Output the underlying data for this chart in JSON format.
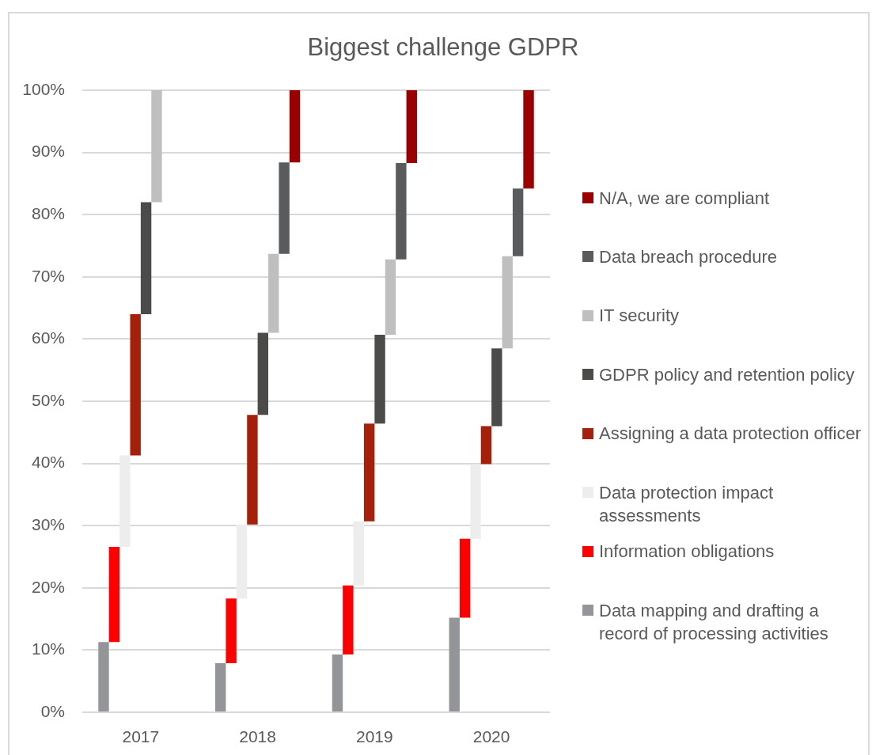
{
  "chart_data": {
    "type": "bar",
    "title": "Biggest challenge GDPR",
    "categories": [
      "2017",
      "2018",
      "2019",
      "2020"
    ],
    "stacked": true,
    "series": [
      {
        "name": "Data mapping and drafting a record of processing activities",
        "color": "#939598",
        "values": [
          11.3,
          7.9,
          9.3,
          15.2
        ]
      },
      {
        "name": "Information obligations",
        "color": "#ff0000",
        "values": [
          15.3,
          10.4,
          11.1,
          12.7
        ]
      },
      {
        "name": "Data protection impact assessments",
        "color": "#ededed",
        "values": [
          14.7,
          11.9,
          10.3,
          12.0
        ]
      },
      {
        "name": "Assigning a data protection officer",
        "color": "#a5200a",
        "values": [
          22.7,
          17.6,
          15.7,
          6.1
        ]
      },
      {
        "name": "GDPR policy and retention policy",
        "color": "#4b4b49",
        "values": [
          18.0,
          13.2,
          14.3,
          12.5
        ]
      },
      {
        "name": "IT security",
        "color": "#bfbfbf",
        "values": [
          18.0,
          12.7,
          12.1,
          14.8
        ]
      },
      {
        "name": "Data breach procedure",
        "color": "#5a5b5d",
        "values": [
          null,
          14.7,
          15.5,
          10.9
        ]
      },
      {
        "name": "N/A, we are compliant",
        "color": "#9b0000",
        "values": [
          null,
          11.6,
          11.7,
          15.8
        ]
      }
    ],
    "ylim": [
      0,
      100
    ],
    "yticks": [
      {
        "value": 0,
        "label": "0%"
      },
      {
        "value": 10,
        "label": "10%"
      },
      {
        "value": 20,
        "label": "20%"
      },
      {
        "value": 30,
        "label": "30%"
      },
      {
        "value": 40,
        "label": "40%"
      },
      {
        "value": 50,
        "label": "50%"
      },
      {
        "value": 60,
        "label": "60%"
      },
      {
        "value": 70,
        "label": "70%"
      },
      {
        "value": 80,
        "label": "80%"
      },
      {
        "value": 90,
        "label": "90%"
      },
      {
        "value": 100,
        "label": "100%"
      }
    ],
    "grid": "y",
    "legend": "right"
  }
}
